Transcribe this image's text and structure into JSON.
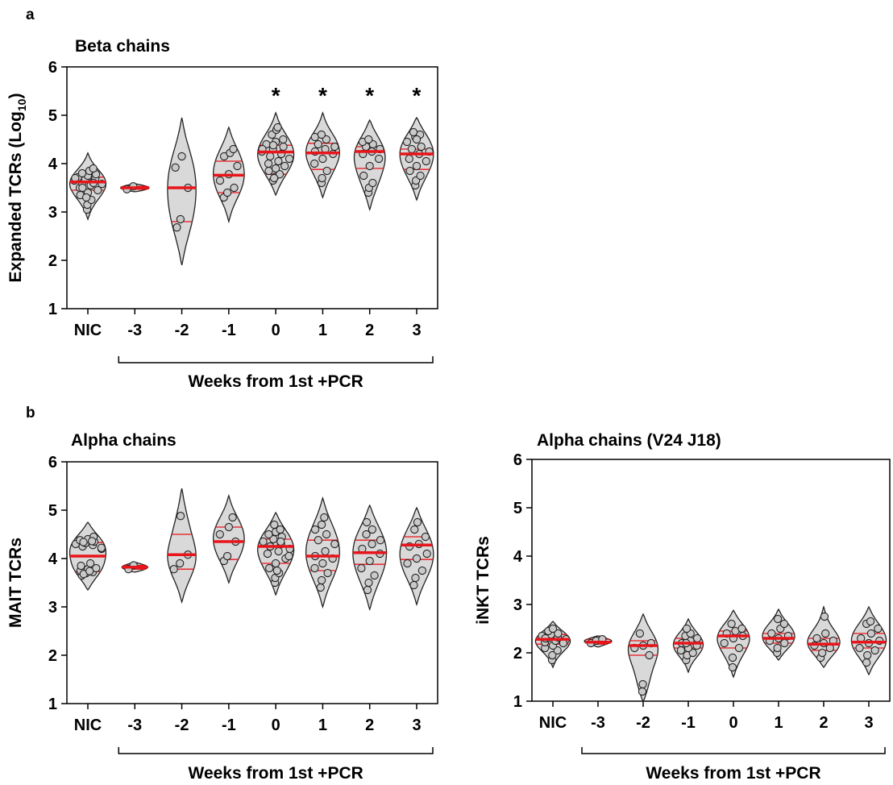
{
  "panels": {
    "a": "a",
    "b": "b"
  },
  "chart_data": [
    {
      "type": "violin",
      "panel": "a",
      "title": "Beta chains",
      "ylabel_main": "Expanded TCRs (Log",
      "ylabel_sub": "10",
      "ylabel_close": ")",
      "ylim": [
        1,
        6
      ],
      "yticks": [
        "1",
        "2",
        "3",
        "4",
        "5",
        "6"
      ],
      "categories": [
        "NIC",
        "-3",
        "-2",
        "-1",
        "0",
        "1",
        "2",
        "3"
      ],
      "group_label": "Weeks from 1st +PCR",
      "group_range": [
        "-3",
        "3"
      ],
      "significance": [
        "",
        "",
        "",
        "",
        "*",
        "*",
        "*",
        "*"
      ],
      "medians": [
        3.62,
        3.5,
        3.5,
        3.76,
        4.24,
        4.22,
        4.25,
        4.2
      ],
      "quartiles": [
        [
          3.45,
          3.72
        ],
        [
          3.47,
          3.53
        ],
        [
          2.8,
          3.5
        ],
        [
          3.4,
          4.05
        ],
        [
          3.78,
          4.38
        ],
        [
          3.88,
          4.42
        ],
        [
          3.9,
          4.35
        ],
        [
          3.88,
          4.3
        ]
      ],
      "points": [
        [
          3.05,
          3.15,
          3.25,
          3.35,
          3.4,
          3.45,
          3.5,
          3.55,
          3.58,
          3.6,
          3.62,
          3.65,
          3.68,
          3.7,
          3.72,
          3.75,
          3.78,
          3.8,
          3.85,
          3.9,
          3.5,
          3.6,
          3.7,
          3.3
        ],
        [
          3.47,
          3.53
        ],
        [
          2.68,
          2.85,
          3.5,
          3.92,
          4.15
        ],
        [
          3.3,
          3.4,
          3.5,
          3.65,
          3.78,
          3.95,
          4.15,
          4.22,
          4.3
        ],
        [
          3.65,
          3.72,
          3.78,
          3.85,
          3.9,
          3.95,
          4.0,
          4.05,
          4.1,
          4.15,
          4.2,
          4.25,
          4.3,
          4.35,
          4.4,
          4.45,
          4.5,
          4.6,
          4.7,
          4.75,
          3.7,
          4.2,
          4.3,
          4.38
        ],
        [
          3.6,
          3.7,
          3.85,
          4.0,
          4.1,
          4.2,
          4.25,
          4.3,
          4.35,
          4.4,
          4.5,
          4.55,
          4.6
        ],
        [
          3.4,
          3.5,
          3.6,
          3.75,
          3.95,
          4.1,
          4.2,
          4.25,
          4.3,
          4.35,
          4.4,
          4.45,
          4.5
        ],
        [
          3.55,
          3.65,
          3.75,
          3.85,
          3.95,
          4.05,
          4.1,
          4.2,
          4.25,
          4.3,
          4.35,
          4.45,
          4.55,
          4.6,
          4.65,
          4.5
        ]
      ],
      "violin_range": [
        [
          2.85,
          4.22
        ],
        [
          3.42,
          3.58
        ],
        [
          1.9,
          4.95
        ],
        [
          2.8,
          4.75
        ],
        [
          3.35,
          5.05
        ],
        [
          3.3,
          5.05
        ],
        [
          3.05,
          4.9
        ],
        [
          3.25,
          4.95
        ]
      ],
      "violin_width": [
        0.7,
        0.55,
        0.55,
        0.6,
        0.7,
        0.65,
        0.6,
        0.65
      ]
    },
    {
      "type": "violin",
      "panel": "b",
      "title": "Alpha chains",
      "ylabel_main": "MAIT TCRs",
      "ylabel_sub": "",
      "ylabel_close": "",
      "ylim": [
        1,
        6
      ],
      "yticks": [
        "1",
        "2",
        "3",
        "4",
        "5",
        "6"
      ],
      "categories": [
        "NIC",
        "-3",
        "-2",
        "-1",
        "0",
        "1",
        "2",
        "3"
      ],
      "group_label": "Weeks from 1st +PCR",
      "group_range": [
        "-3",
        "3"
      ],
      "significance": [
        "",
        "",
        "",
        "",
        "",
        "",
        "",
        ""
      ],
      "medians": [
        4.05,
        3.82,
        4.08,
        4.35,
        4.25,
        4.05,
        4.12,
        4.28
      ],
      "quartiles": [
        [
          3.73,
          4.33
        ],
        [
          3.78,
          3.86
        ],
        [
          3.78,
          4.5
        ],
        [
          3.98,
          4.65
        ],
        [
          3.9,
          4.4
        ],
        [
          3.75,
          4.38
        ],
        [
          3.88,
          4.38
        ],
        [
          3.98,
          4.45
        ]
      ],
      "points": [
        [
          3.65,
          3.7,
          3.72,
          3.75,
          3.78,
          3.8,
          3.85,
          3.9,
          4.2,
          4.25,
          4.28,
          4.3,
          4.32,
          4.35,
          4.38,
          4.4,
          4.45,
          3.68,
          3.74,
          4.22,
          4.34,
          4.36
        ],
        [
          3.78,
          3.86
        ],
        [
          3.78,
          3.9,
          4.08,
          4.88
        ],
        [
          3.95,
          4.05,
          4.35,
          4.5,
          4.65,
          4.85
        ],
        [
          3.5,
          3.6,
          3.7,
          3.8,
          3.9,
          4.0,
          4.1,
          4.15,
          4.2,
          4.25,
          4.3,
          4.35,
          4.4,
          4.45,
          4.5,
          4.55,
          4.6,
          4.7,
          3.75,
          4.05,
          4.25,
          4.35
        ],
        [
          3.4,
          3.55,
          3.7,
          3.8,
          3.9,
          4.0,
          4.05,
          4.15,
          4.3,
          4.38,
          4.5,
          4.6,
          4.7,
          4.85
        ],
        [
          3.35,
          3.5,
          3.65,
          3.8,
          3.95,
          4.1,
          4.2,
          4.3,
          4.38,
          4.5,
          4.6,
          4.75
        ],
        [
          3.45,
          3.6,
          3.75,
          3.9,
          4.0,
          4.1,
          4.25,
          4.3,
          4.45,
          4.6,
          4.75
        ]
      ],
      "violin_range": [
        [
          3.35,
          4.75
        ],
        [
          3.72,
          3.92
        ],
        [
          3.1,
          5.45
        ],
        [
          3.5,
          5.3
        ],
        [
          3.25,
          4.95
        ],
        [
          3.0,
          5.25
        ],
        [
          2.95,
          5.1
        ],
        [
          3.05,
          5.05
        ]
      ],
      "violin_width": [
        0.7,
        0.5,
        0.55,
        0.6,
        0.7,
        0.65,
        0.65,
        0.65
      ]
    },
    {
      "type": "violin",
      "panel": "b",
      "title": "Alpha chains (V24 J18)",
      "ylabel_main": "iNKT  TCRs",
      "ylabel_sub": "",
      "ylabel_close": "",
      "ylim": [
        1,
        6
      ],
      "yticks": [
        "1",
        "2",
        "3",
        "4",
        "5",
        "6"
      ],
      "categories": [
        "NIC",
        "-3",
        "-2",
        "-1",
        "0",
        "1",
        "2",
        "3"
      ],
      "group_label": "Weeks from 1st +PCR",
      "group_range": [
        "-3",
        "3"
      ],
      "significance": [
        "",
        "",
        "",
        "",
        "",
        "",
        "",
        ""
      ],
      "medians": [
        2.28,
        2.22,
        2.15,
        2.2,
        2.35,
        2.3,
        2.18,
        2.22
      ],
      "quartiles": [
        [
          2.18,
          2.38
        ],
        [
          2.18,
          2.28
        ],
        [
          1.95,
          2.25
        ],
        [
          2.1,
          2.3
        ],
        [
          2.1,
          2.45
        ],
        [
          2.2,
          2.4
        ],
        [
          2.05,
          2.3
        ],
        [
          2.1,
          2.4
        ]
      ],
      "points": [
        [
          1.85,
          1.95,
          2.05,
          2.1,
          2.15,
          2.2,
          2.22,
          2.25,
          2.28,
          2.3,
          2.32,
          2.35,
          2.38,
          2.4,
          2.45,
          2.5,
          2.2,
          2.3
        ],
        [
          2.2,
          2.25,
          2.28
        ],
        [
          1.2,
          1.35,
          1.95,
          2.1,
          2.15,
          2.2,
          2.4
        ],
        [
          1.85,
          1.95,
          2.0,
          2.05,
          2.1,
          2.15,
          2.2,
          2.25,
          2.3,
          2.35,
          2.4,
          2.5,
          2.2
        ],
        [
          1.7,
          1.9,
          2.1,
          2.2,
          2.3,
          2.35,
          2.4,
          2.45,
          2.5,
          2.6
        ],
        [
          2.0,
          2.1,
          2.2,
          2.25,
          2.3,
          2.35,
          2.4,
          2.5,
          2.6,
          2.7
        ],
        [
          1.9,
          2.0,
          2.1,
          2.15,
          2.2,
          2.25,
          2.3,
          2.4,
          2.75
        ],
        [
          1.8,
          1.95,
          2.05,
          2.1,
          2.2,
          2.25,
          2.3,
          2.4,
          2.5,
          2.6,
          2.65
        ]
      ],
      "violin_range": [
        [
          1.7,
          2.65
        ],
        [
          2.12,
          2.35
        ],
        [
          1.0,
          2.8
        ],
        [
          1.6,
          2.7
        ],
        [
          1.5,
          2.88
        ],
        [
          1.85,
          2.9
        ],
        [
          1.7,
          2.95
        ],
        [
          1.55,
          2.95
        ]
      ],
      "violin_width": [
        0.7,
        0.55,
        0.6,
        0.6,
        0.65,
        0.65,
        0.65,
        0.7
      ]
    }
  ],
  "colors": {
    "median": "#e8151b",
    "quartile": "#e8151b",
    "violin_fill": "#d9d9d9",
    "violin_stroke": "#222222",
    "point_fill": "#c9c9c9",
    "point_stroke": "#222222",
    "axis": "#000000"
  }
}
